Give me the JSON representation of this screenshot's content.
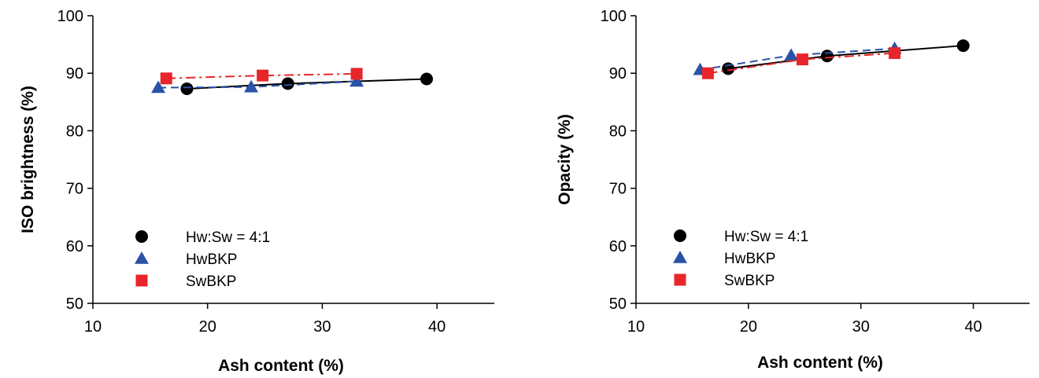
{
  "chart_data": [
    {
      "type": "scatter",
      "xlabel": "Ash content (%)",
      "ylabel": "ISO brightness (%)",
      "xlim": [
        10,
        45
      ],
      "ylim": [
        50,
        100
      ],
      "xticks": [
        10,
        20,
        30,
        40
      ],
      "yticks": [
        50,
        60,
        70,
        80,
        90,
        100
      ],
      "legend_position": "lower-left",
      "series": [
        {
          "name": "Hw:Sw = 4:1",
          "marker": "circle",
          "color": "#000000",
          "line": "solid",
          "x": [
            18.2,
            27.0,
            39.1
          ],
          "y": [
            87.3,
            88.2,
            89.0
          ]
        },
        {
          "name": "HwBKP",
          "marker": "triangle",
          "color": "#2a52a6",
          "line": "dashed",
          "x": [
            15.7,
            23.8,
            33.0
          ],
          "y": [
            87.5,
            87.6,
            88.6
          ]
        },
        {
          "name": "SwBKP",
          "marker": "square",
          "color": "#e8252a",
          "line": "dashdot",
          "x": [
            16.4,
            24.8,
            33.0
          ],
          "y": [
            89.1,
            89.6,
            89.9
          ]
        }
      ]
    },
    {
      "type": "scatter",
      "xlabel": "Ash content (%)",
      "ylabel": "Opacity (%)",
      "xlim": [
        10,
        45
      ],
      "ylim": [
        50,
        100
      ],
      "xticks": [
        10,
        20,
        30,
        40
      ],
      "yticks": [
        50,
        60,
        70,
        80,
        90,
        100
      ],
      "legend_position": "lower-left",
      "series": [
        {
          "name": "Hw:Sw = 4:1",
          "marker": "circle",
          "color": "#000000",
          "line": "solid",
          "x": [
            18.2,
            27.0,
            39.1
          ],
          "y": [
            90.8,
            93.0,
            94.8
          ]
        },
        {
          "name": "HwBKP",
          "marker": "triangle",
          "color": "#2a52a6",
          "line": "dashed",
          "x": [
            15.7,
            23.8,
            33.0
          ],
          "y": [
            90.6,
            93.1,
            94.3
          ]
        },
        {
          "name": "SwBKP",
          "marker": "square",
          "color": "#e8252a",
          "line": "dashdot",
          "x": [
            16.4,
            24.8,
            33.0
          ],
          "y": [
            90.0,
            92.4,
            93.5
          ]
        }
      ]
    }
  ]
}
